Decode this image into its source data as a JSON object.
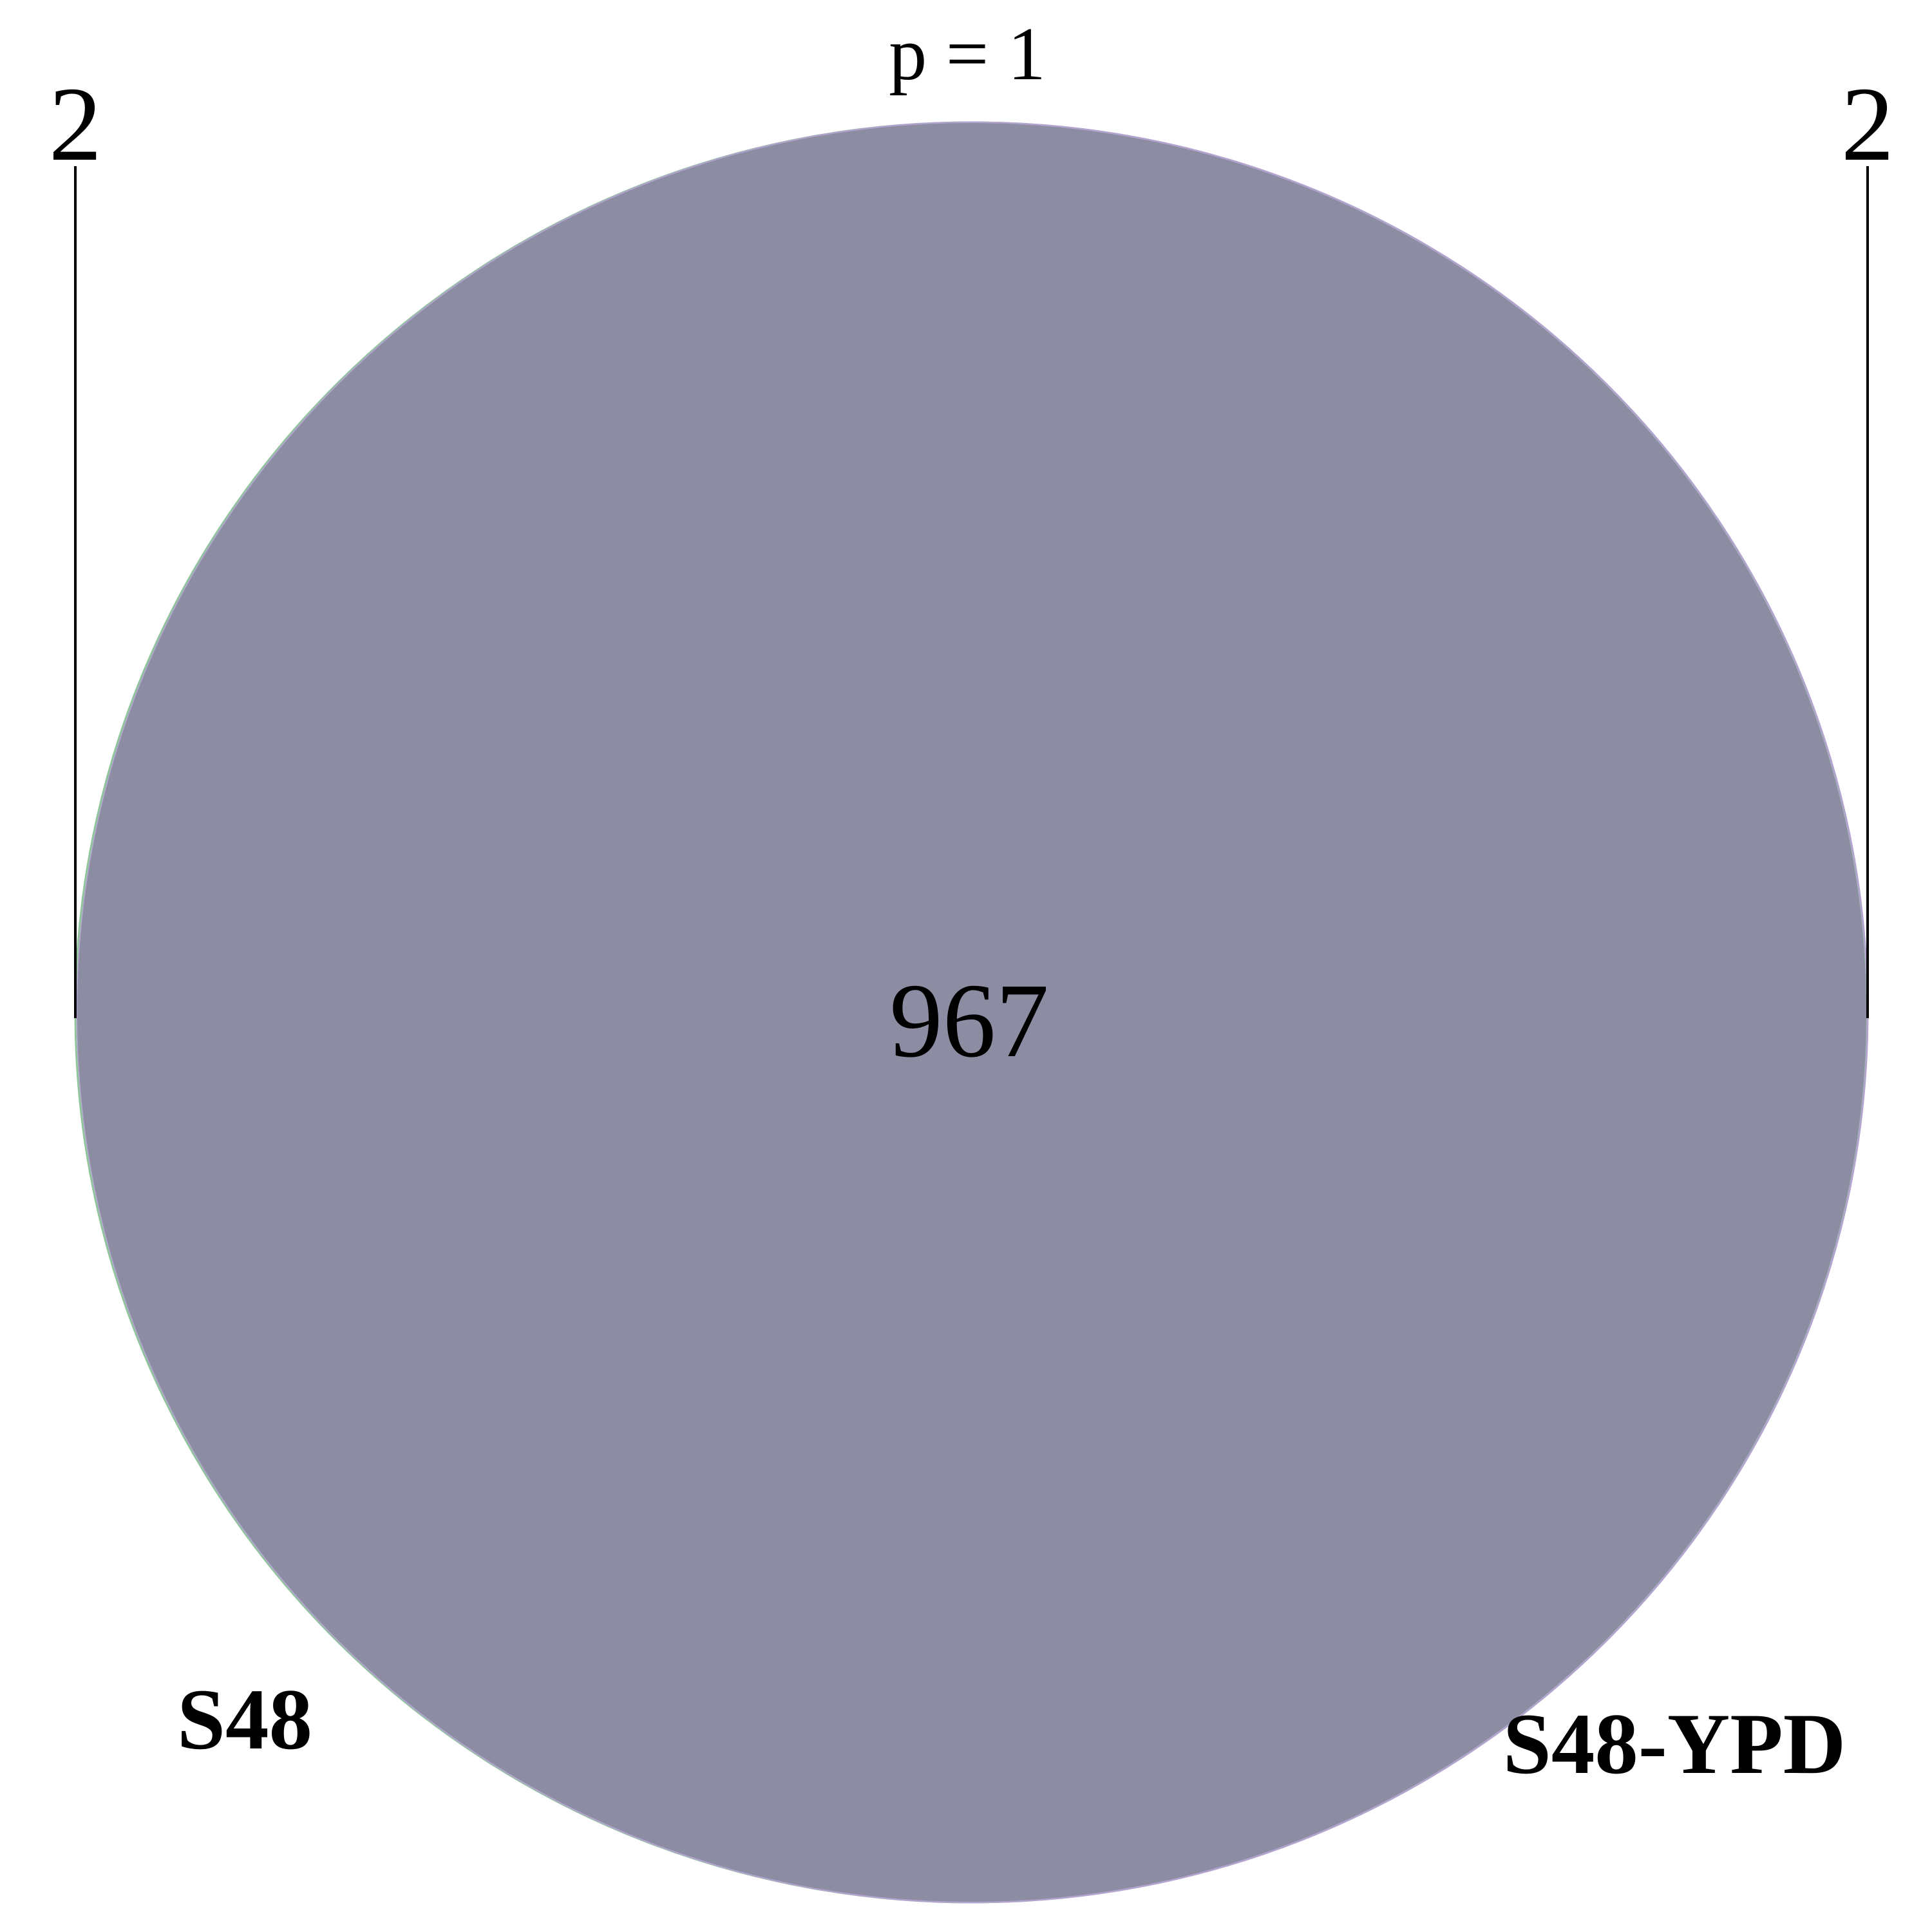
{
  "diagram": {
    "type": "venn",
    "p_value_label": "p = 1",
    "sets": [
      {
        "name": "S48",
        "only_count": "2",
        "color": "#8fc59a"
      },
      {
        "name": "S48-YPD",
        "only_count": "2",
        "color": "#b2a3cf"
      }
    ],
    "intersection": {
      "count": "967",
      "color": "#8c8ca3"
    },
    "leader_line_color": "#000000"
  }
}
